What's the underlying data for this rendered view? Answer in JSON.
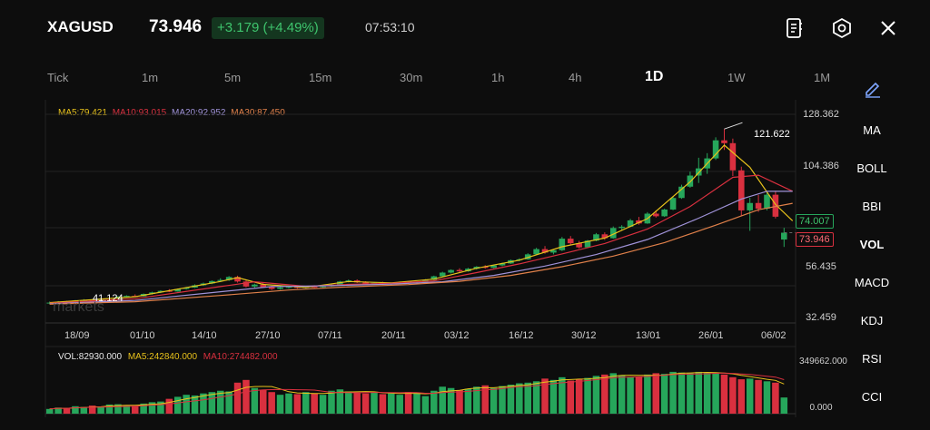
{
  "header": {
    "symbol": "XAGUSD",
    "price": "73.946",
    "change": "+3.179 (+4.49%)",
    "time": "07:53:10"
  },
  "timeframes": [
    "Tick",
    "1m",
    "5m",
    "15m",
    "30m",
    "1h",
    "4h",
    "1D",
    "1W",
    "1M"
  ],
  "active_timeframe": "1D",
  "ma_legend": {
    "ma5": "MA5:79.421",
    "ma10": "MA10:93.015",
    "ma20": "MA20:92.952",
    "ma30": "MA30:87.450"
  },
  "price_axis": [
    "128.362",
    "104.386",
    "56.435",
    "32.459"
  ],
  "price_tags": {
    "prev": "74.007",
    "current": "73.946",
    "high": "121.622",
    "low": "41.124"
  },
  "dates": [
    "18/09",
    "01/10",
    "14/10",
    "27/10",
    "07/11",
    "20/11",
    "03/12",
    "16/12",
    "30/12",
    "13/01",
    "26/01",
    "06/02"
  ],
  "watermark": "markets",
  "volume_legend": {
    "vol": "VOL:82930.000",
    "ma5": "MA5:242840.000",
    "ma10": "MA10:274482.000"
  },
  "volume_axis": [
    "349662.000",
    "0.000"
  ],
  "indicators": [
    "MA",
    "BOLL",
    "BBI",
    "VOL",
    "MACD",
    "KDJ",
    "RSI",
    "CCI"
  ],
  "active_indicator": "VOL",
  "colors": {
    "up": "#26a65b",
    "down": "#d9303f",
    "ma5": "#e8c21b",
    "ma10": "#d9303f",
    "ma20": "#9f92d8",
    "ma30": "#e0804a"
  },
  "icons": [
    "notes-icon",
    "settings-icon",
    "close-icon",
    "pencil-icon"
  ],
  "chart_data": {
    "type": "candlestick",
    "y_range": [
      32.459,
      128.362
    ],
    "candles": [
      [
        41.5,
        42.3,
        41.1,
        41.8
      ],
      [
        41.8,
        42.5,
        41.5,
        42.2
      ],
      [
        42.2,
        42.6,
        41.7,
        41.9
      ],
      [
        41.9,
        43.0,
        41.8,
        42.8
      ],
      [
        42.8,
        43.4,
        42.5,
        43.0
      ],
      [
        43.0,
        43.2,
        42.2,
        42.4
      ],
      [
        42.4,
        43.8,
        42.3,
        43.6
      ],
      [
        43.6,
        44.2,
        43.3,
        43.9
      ],
      [
        43.9,
        44.8,
        43.6,
        44.5
      ],
      [
        44.5,
        45.2,
        44.2,
        44.9
      ],
      [
        44.9,
        45.6,
        44.4,
        44.7
      ],
      [
        44.7,
        46.0,
        44.6,
        45.8
      ],
      [
        45.8,
        46.8,
        45.5,
        46.5
      ],
      [
        46.5,
        47.5,
        46.2,
        47.2
      ],
      [
        47.2,
        48.0,
        46.6,
        46.9
      ],
      [
        46.9,
        48.3,
        46.8,
        48.1
      ],
      [
        48.1,
        49.0,
        47.8,
        48.7
      ],
      [
        48.7,
        50.2,
        48.5,
        49.8
      ],
      [
        49.8,
        51.0,
        49.5,
        50.6
      ],
      [
        50.6,
        52.0,
        50.3,
        51.7
      ],
      [
        51.7,
        53.0,
        51.3,
        52.2
      ],
      [
        52.2,
        54.0,
        51.8,
        53.6
      ],
      [
        53.6,
        54.2,
        51.0,
        51.5
      ],
      [
        51.5,
        52.0,
        48.8,
        49.2
      ],
      [
        49.2,
        50.5,
        48.6,
        50.1
      ],
      [
        50.1,
        50.8,
        48.5,
        48.9
      ],
      [
        48.9,
        49.5,
        47.6,
        48.1
      ],
      [
        48.1,
        49.2,
        47.8,
        48.8
      ],
      [
        48.8,
        49.6,
        48.3,
        49.0
      ],
      [
        49.0,
        49.5,
        48.2,
        48.6
      ],
      [
        48.6,
        49.4,
        48.4,
        49.1
      ],
      [
        49.1,
        49.8,
        48.6,
        48.9
      ],
      [
        48.9,
        49.6,
        48.7,
        49.3
      ],
      [
        49.3,
        50.4,
        49.1,
        50.1
      ],
      [
        50.1,
        51.8,
        49.9,
        51.5
      ],
      [
        51.5,
        52.4,
        51.1,
        52.0
      ],
      [
        52.0,
        52.5,
        50.8,
        51.1
      ],
      [
        51.1,
        51.6,
        50.2,
        50.6
      ],
      [
        50.6,
        51.2,
        50.1,
        50.9
      ],
      [
        50.9,
        51.4,
        50.3,
        50.5
      ],
      [
        50.5,
        51.0,
        49.9,
        50.8
      ],
      [
        50.8,
        51.5,
        50.5,
        51.2
      ],
      [
        51.2,
        51.6,
        50.4,
        50.7
      ],
      [
        50.7,
        51.3,
        50.5,
        51.0
      ],
      [
        51.0,
        52.6,
        50.9,
        52.3
      ],
      [
        52.3,
        54.2,
        52.1,
        53.9
      ],
      [
        53.9,
        56.0,
        53.6,
        55.6
      ],
      [
        55.6,
        57.1,
        55.2,
        56.8
      ],
      [
        56.8,
        57.6,
        55.8,
        56.2
      ],
      [
        56.2,
        57.8,
        56.0,
        57.4
      ],
      [
        57.4,
        58.6,
        57.0,
        58.3
      ],
      [
        58.3,
        59.0,
        57.4,
        57.8
      ],
      [
        57.8,
        59.2,
        57.6,
        58.9
      ],
      [
        58.9,
        60.2,
        58.5,
        59.8
      ],
      [
        59.8,
        61.6,
        59.6,
        61.3
      ],
      [
        61.3,
        62.2,
        60.8,
        61.7
      ],
      [
        61.7,
        64.5,
        61.5,
        64.0
      ],
      [
        64.0,
        67.0,
        63.8,
        66.4
      ],
      [
        66.4,
        67.8,
        64.3,
        64.8
      ],
      [
        64.8,
        66.2,
        64.0,
        65.9
      ],
      [
        65.9,
        72.0,
        65.5,
        71.2
      ],
      [
        71.2,
        72.4,
        68.5,
        69.1
      ],
      [
        69.1,
        70.2,
        66.7,
        67.2
      ],
      [
        67.2,
        70.6,
        67.0,
        70.3
      ],
      [
        70.3,
        73.8,
        70.0,
        73.2
      ],
      [
        73.2,
        74.1,
        70.6,
        71.4
      ],
      [
        71.4,
        76.8,
        71.2,
        76.1
      ],
      [
        76.1,
        77.4,
        75.2,
        76.7
      ],
      [
        76.7,
        80.3,
        76.5,
        79.6
      ],
      [
        79.6,
        81.2,
        77.6,
        78.2
      ],
      [
        78.2,
        83.4,
        78.0,
        82.7
      ],
      [
        82.7,
        84.2,
        80.9,
        81.5
      ],
      [
        81.5,
        85.0,
        81.2,
        84.6
      ],
      [
        84.6,
        90.5,
        84.3,
        89.9
      ],
      [
        89.9,
        96.0,
        89.5,
        95.1
      ],
      [
        95.1,
        102.0,
        94.6,
        100.2
      ],
      [
        100.2,
        108.4,
        96.8,
        103.5
      ],
      [
        103.5,
        110.5,
        101.0,
        108.1
      ],
      [
        108.1,
        117.8,
        107.4,
        116.4
      ],
      [
        116.4,
        121.622,
        112.0,
        115.1
      ],
      [
        115.1,
        117.2,
        100.0,
        102.6
      ],
      [
        102.6,
        104.3,
        81.5,
        84.2
      ],
      [
        84.2,
        90.0,
        74.8,
        87.6
      ],
      [
        87.6,
        91.3,
        83.5,
        85.0
      ],
      [
        85.0,
        92.5,
        84.2,
        91.4
      ],
      [
        91.4,
        93.2,
        80.5,
        81.3
      ],
      [
        70.8,
        76.2,
        67.4,
        73.946
      ]
    ],
    "ma_series": {
      "MA5": [
        [
          0,
          41.8
        ],
        [
          10,
          44.5
        ],
        [
          20,
          51.5
        ],
        [
          22,
          53.3
        ],
        [
          25,
          50.2
        ],
        [
          30,
          48.8
        ],
        [
          35,
          51.5
        ],
        [
          40,
          50.9
        ],
        [
          45,
          52.6
        ],
        [
          50,
          57.6
        ],
        [
          55,
          61.3
        ],
        [
          60,
          67.5
        ],
        [
          65,
          71.5
        ],
        [
          70,
          80.4
        ],
        [
          75,
          97.3
        ],
        [
          79,
          114.2
        ],
        [
          82,
          104.0
        ],
        [
          85,
          86.9
        ],
        [
          87,
          79.421
        ]
      ],
      "MA10": [
        [
          0,
          41.5
        ],
        [
          10,
          43.6
        ],
        [
          20,
          49.2
        ],
        [
          24,
          51.4
        ],
        [
          30,
          49.3
        ],
        [
          35,
          50.2
        ],
        [
          40,
          50.7
        ],
        [
          45,
          51.8
        ],
        [
          50,
          55.6
        ],
        [
          55,
          59.6
        ],
        [
          60,
          64.2
        ],
        [
          65,
          69.0
        ],
        [
          70,
          75.6
        ],
        [
          75,
          86.0
        ],
        [
          80,
          99.4
        ],
        [
          83,
          100.4
        ],
        [
          87,
          93.015
        ]
      ],
      "MA20": [
        [
          0,
          41.3
        ],
        [
          10,
          42.8
        ],
        [
          20,
          46.8
        ],
        [
          26,
          49.2
        ],
        [
          32,
          49.5
        ],
        [
          40,
          50.3
        ],
        [
          46,
          51.4
        ],
        [
          52,
          54.3
        ],
        [
          58,
          58.6
        ],
        [
          64,
          63.9
        ],
        [
          70,
          70.8
        ],
        [
          76,
          80.6
        ],
        [
          81,
          89.4
        ],
        [
          84,
          93.0
        ],
        [
          87,
          92.952
        ]
      ],
      "MA30": [
        [
          0,
          41.1
        ],
        [
          10,
          42.2
        ],
        [
          20,
          45.1
        ],
        [
          28,
          47.6
        ],
        [
          34,
          48.9
        ],
        [
          42,
          50.1
        ],
        [
          48,
          51.6
        ],
        [
          54,
          54.3
        ],
        [
          60,
          58.3
        ],
        [
          66,
          63.2
        ],
        [
          72,
          69.4
        ],
        [
          78,
          77.4
        ],
        [
          83,
          84.5
        ],
        [
          87,
          87.45
        ]
      ]
    },
    "volume_range": [
      0,
      349662
    ],
    "volume": [
      35,
      45,
      40,
      55,
      50,
      60,
      52,
      68,
      70,
      60,
      58,
      75,
      85,
      90,
      110,
      125,
      140,
      135,
      150,
      160,
      170,
      165,
      230,
      250,
      190,
      175,
      160,
      140,
      150,
      145,
      160,
      150,
      140,
      170,
      180,
      165,
      155,
      150,
      160,
      145,
      150,
      140,
      160,
      155,
      130,
      170,
      200,
      190,
      175,
      185,
      200,
      210,
      190,
      205,
      215,
      225,
      230,
      240,
      260,
      250,
      270,
      245,
      255,
      265,
      280,
      290,
      300,
      285,
      270,
      275,
      290,
      300,
      295,
      310,
      305,
      300,
      310,
      305,
      300,
      290,
      270,
      255,
      260,
      250,
      240,
      230,
      120
    ]
  }
}
